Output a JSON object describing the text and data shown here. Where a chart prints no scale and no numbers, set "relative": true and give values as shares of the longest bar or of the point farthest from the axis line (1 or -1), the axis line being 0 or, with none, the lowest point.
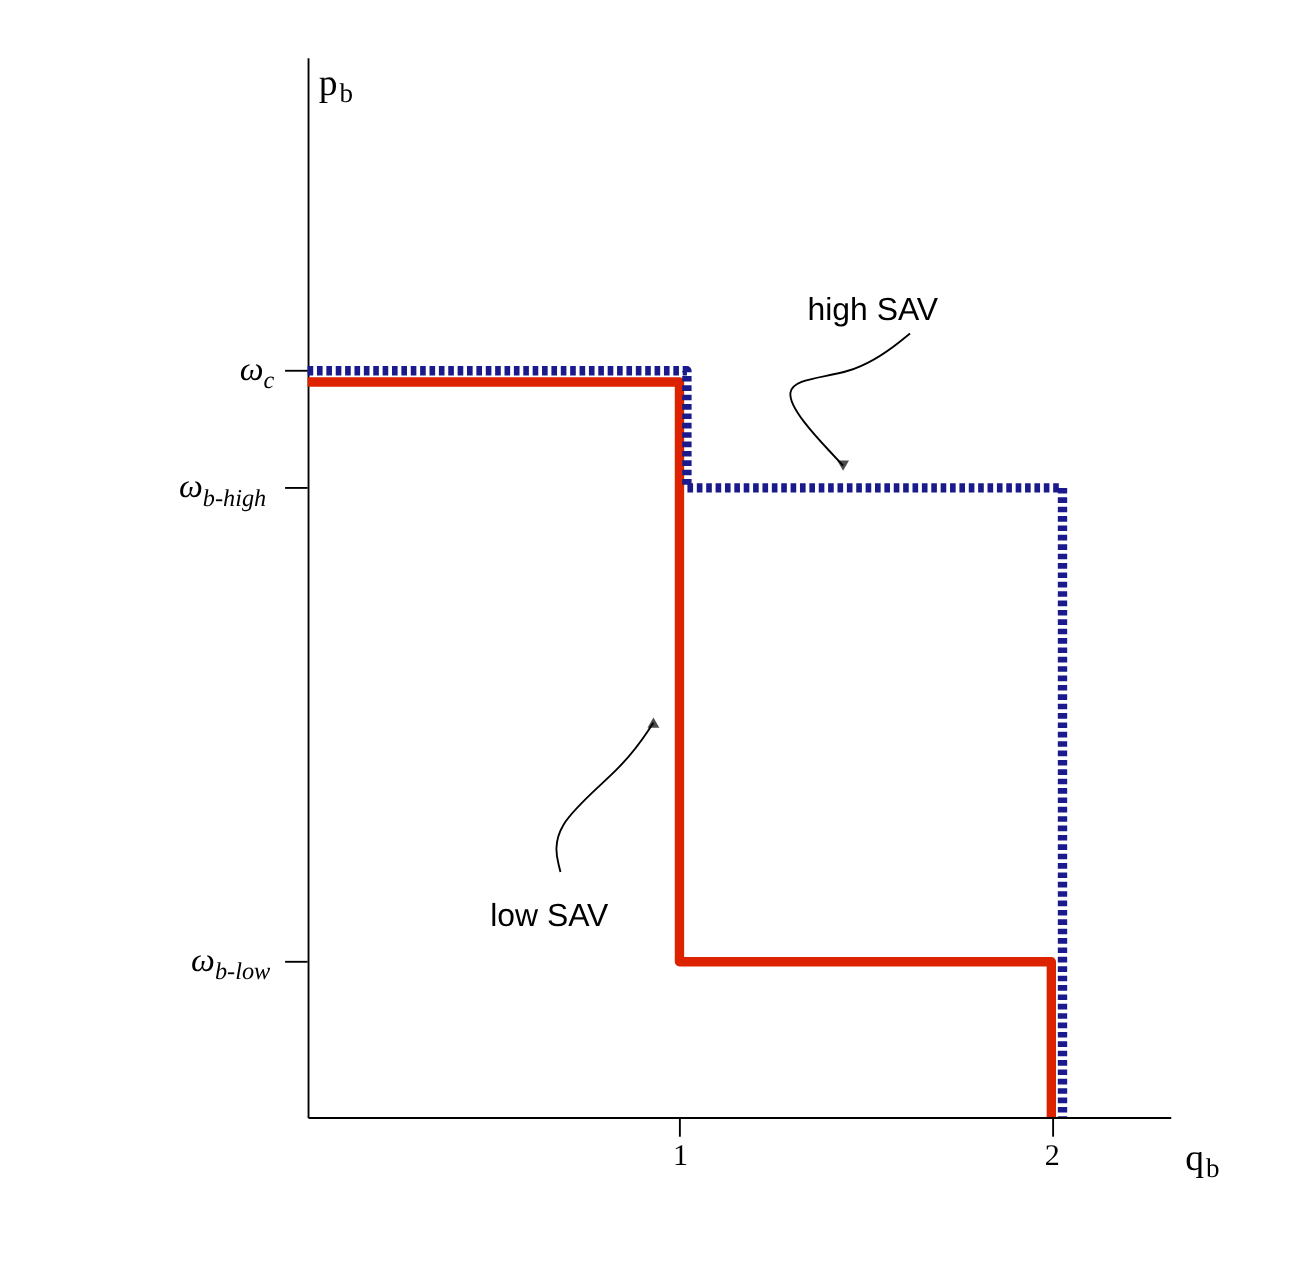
{
  "chart_data": {
    "type": "step",
    "relative": true,
    "xlabel": "q$_{b}$",
    "xlim": [
      0,
      2.32
    ],
    "xticks": [
      1,
      2
    ],
    "annotations": [
      "ω$_{c}$",
      "ω$_{b-high}$",
      "ω$_{b-low}$",
      "p$_{b}$"
    ],
    "grid": false,
    "marker": "none",
    "series": [
      {
        "name": "low SAV",
        "color": "#dd2200",
        "line_style": "solid",
        "x": [
          0,
          1,
          1,
          2,
          2
        ],
        "values": [
          0.985,
          0.985,
          0.208,
          0.208,
          0
        ]
      },
      {
        "name": "high SAV",
        "color": "#1a1a8c",
        "line_style": "dotted",
        "x": [
          0,
          1.02,
          1.02,
          2.03,
          2.03
        ],
        "values": [
          1,
          1,
          0.843,
          0.843,
          0
        ]
      }
    ]
  }
}
